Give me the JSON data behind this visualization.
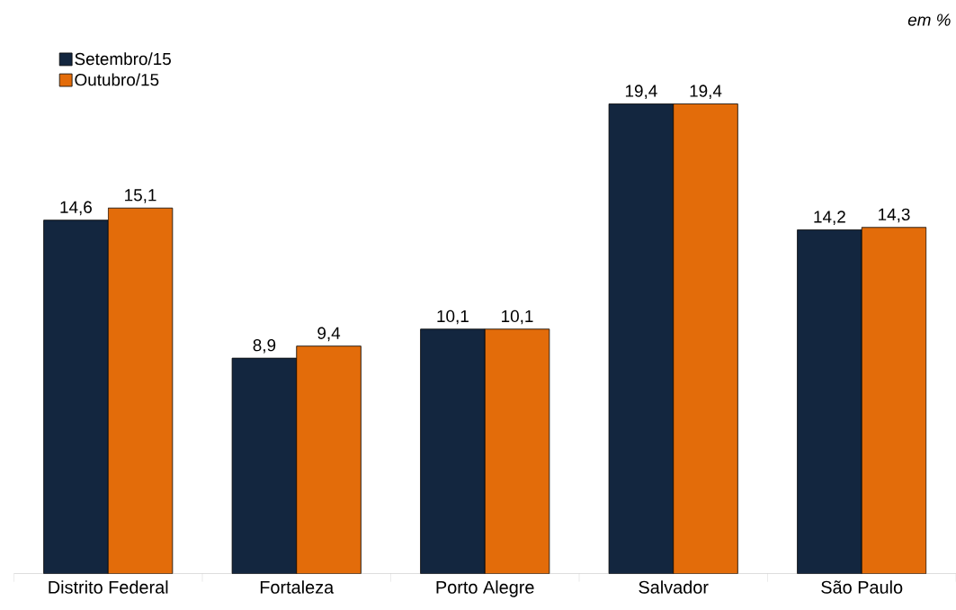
{
  "chart_data": {
    "type": "bar",
    "categories": [
      "Distrito Federal",
      "Fortaleza",
      "Porto Alegre",
      "Salvador",
      "São Paulo"
    ],
    "series": [
      {
        "name": "Setembro/15",
        "color": "#13263f",
        "values": [
          14.6,
          8.9,
          10.1,
          19.4,
          14.2
        ],
        "value_labels": [
          "14,6",
          "8,9",
          "10,1",
          "19,4",
          "14,2"
        ]
      },
      {
        "name": "Outubro/15",
        "color": "#e36c0a",
        "values": [
          15.1,
          9.4,
          10.1,
          19.4,
          14.3
        ],
        "value_labels": [
          "15,1",
          "9,4",
          "10,1",
          "19,4",
          "14,3"
        ]
      }
    ],
    "legend": "top left",
    "annotations": [
      "em %"
    ]
  }
}
